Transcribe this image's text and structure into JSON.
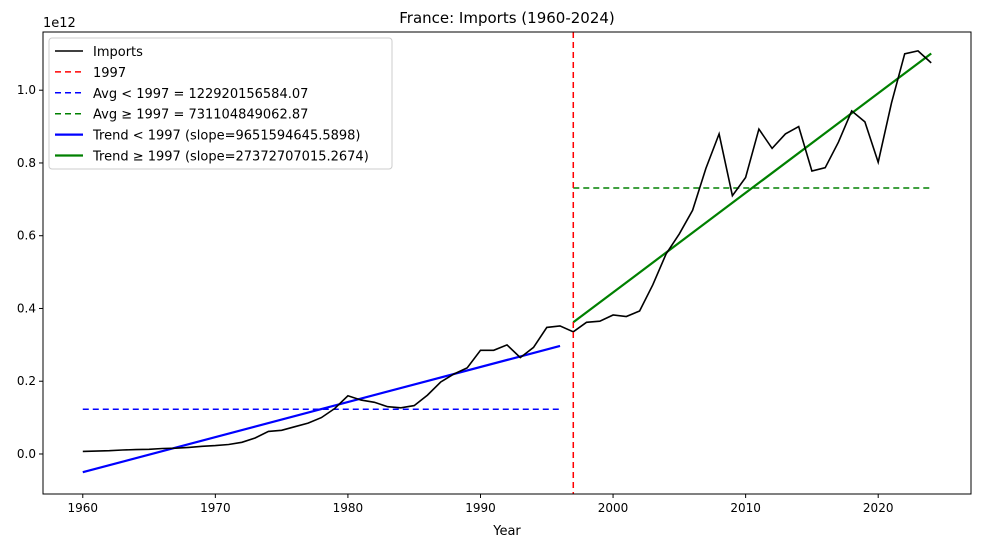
{
  "chart_data": {
    "type": "line",
    "title": "France: Imports (1960-2024)",
    "xlabel": "Year",
    "ylabel": "",
    "y_offset_label": "1e12",
    "xlim": [
      1957,
      2027
    ],
    "ylim": [
      -0.11,
      1.16
    ],
    "xticks": [
      1960,
      1970,
      1980,
      1990,
      2000,
      2010,
      2020
    ],
    "yticks": [
      0.0,
      0.2,
      0.4,
      0.6,
      0.8,
      1.0
    ],
    "ytick_labels": [
      "0.0",
      "0.2",
      "0.4",
      "0.6",
      "0.8",
      "1.0"
    ],
    "legend_position": "top-left",
    "series": [
      {
        "name": "Imports",
        "color": "#000000",
        "x": [
          1960,
          1961,
          1962,
          1963,
          1964,
          1965,
          1966,
          1967,
          1968,
          1969,
          1970,
          1971,
          1972,
          1973,
          1974,
          1975,
          1976,
          1977,
          1978,
          1979,
          1980,
          1981,
          1982,
          1983,
          1984,
          1985,
          1986,
          1987,
          1988,
          1989,
          1990,
          1991,
          1992,
          1993,
          1994,
          1995,
          1996,
          1997,
          1998,
          1999,
          2000,
          2001,
          2002,
          2003,
          2004,
          2005,
          2006,
          2007,
          2008,
          2009,
          2010,
          2011,
          2012,
          2013,
          2014,
          2015,
          2016,
          2017,
          2018,
          2019,
          2020,
          2021,
          2022,
          2023,
          2024
        ],
        "values": [
          0.007,
          0.008,
          0.009,
          0.011,
          0.012,
          0.013,
          0.015,
          0.016,
          0.018,
          0.021,
          0.023,
          0.026,
          0.032,
          0.044,
          0.062,
          0.065,
          0.075,
          0.085,
          0.1,
          0.125,
          0.16,
          0.148,
          0.142,
          0.13,
          0.127,
          0.133,
          0.162,
          0.198,
          0.22,
          0.237,
          0.285,
          0.285,
          0.3,
          0.265,
          0.293,
          0.348,
          0.352,
          0.336,
          0.362,
          0.365,
          0.382,
          0.378,
          0.393,
          0.465,
          0.55,
          0.605,
          0.67,
          0.785,
          0.88,
          0.71,
          0.76,
          0.893,
          0.84,
          0.88,
          0.9,
          0.778,
          0.787,
          0.857,
          0.943,
          0.913,
          0.802,
          0.965,
          1.1,
          1.108,
          1.075
        ]
      }
    ],
    "reference_line": {
      "name": "1997",
      "x": 1997,
      "color": "#ff0000"
    },
    "averages": [
      {
        "name": "Avg < 1997 = 122920156584.07",
        "value": 0.12292,
        "x_range": [
          1960,
          1996
        ],
        "color": "#0000ff"
      },
      {
        "name": "Avg ≥ 1997 = 731104849062.87",
        "value": 0.7311,
        "x_range": [
          1997,
          2024
        ],
        "color": "#008000"
      }
    ],
    "trends": [
      {
        "name": "Trend < 1997 (slope=9651594645.5898)",
        "x_range": [
          1960,
          1996
        ],
        "y_range": [
          -0.05,
          0.297
        ],
        "color": "#0000ff"
      },
      {
        "name": "Trend ≥ 1997 (slope=27372707015.2674)",
        "x_range": [
          1997,
          2024
        ],
        "y_range": [
          0.362,
          1.101
        ],
        "color": "#008000"
      }
    ]
  }
}
